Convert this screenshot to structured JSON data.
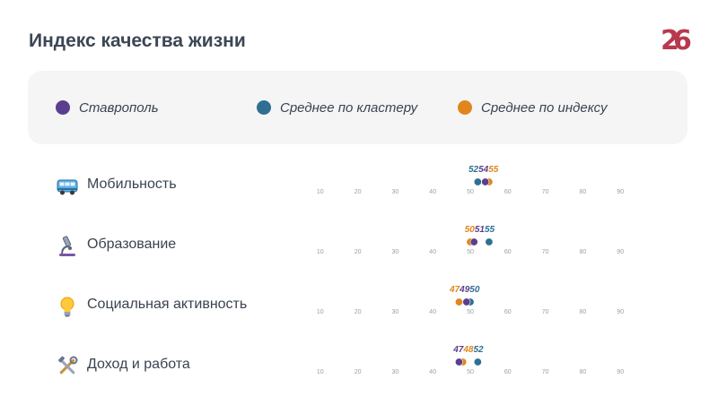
{
  "page": {
    "title": "Индекс качества жизни"
  },
  "logo": {
    "digits": [
      "2",
      "6"
    ]
  },
  "colors": {
    "city": "#5b3f8e",
    "cluster": "#2e6f92",
    "index": "#e0861c",
    "logo": "#b8394e",
    "gradient_start": "#dba1a6",
    "gradient_mid": "#c8c4c0",
    "gradient_end": "#a9dcc2"
  },
  "legend": {
    "items": [
      {
        "key": "city",
        "label": "Ставрополь"
      },
      {
        "key": "cluster",
        "label": "Среднее по кластеру"
      },
      {
        "key": "index",
        "label": "Среднее по индексу"
      }
    ]
  },
  "chart_data": {
    "type": "scatter",
    "x_range": [
      0,
      100
    ],
    "ticks": [
      10,
      20,
      30,
      40,
      50,
      60,
      70,
      80,
      90
    ],
    "series": [
      {
        "name": "Ставрополь",
        "key": "city"
      },
      {
        "name": "Среднее по кластеру",
        "key": "cluster"
      },
      {
        "name": "Среднее по индексу",
        "key": "index"
      }
    ],
    "rows": [
      {
        "label": "Мобильность",
        "icon": "bus-icon",
        "values": {
          "cluster": 52,
          "city": 54,
          "index": 55
        },
        "value_labels": [
          {
            "text": "52",
            "key": "cluster"
          },
          {
            "text": "54",
            "key": "city"
          },
          {
            "text": "55",
            "key": "index"
          }
        ]
      },
      {
        "label": "Образование",
        "icon": "microscope-icon",
        "values": {
          "index": 50,
          "city": 51,
          "cluster": 55
        },
        "value_labels": [
          {
            "text": "50",
            "key": "index"
          },
          {
            "text": "51",
            "key": "city"
          },
          {
            "text": "55",
            "key": "cluster"
          }
        ]
      },
      {
        "label": "Социальная активность",
        "icon": "lightbulb-icon",
        "values": {
          "index": 47,
          "city": 49,
          "cluster": 50
        },
        "value_labels": [
          {
            "text": "47",
            "key": "index"
          },
          {
            "text": "49",
            "key": "city"
          },
          {
            "text": "50",
            "key": "cluster"
          }
        ]
      },
      {
        "label": "Доход и работа",
        "icon": "tools-icon",
        "values": {
          "city": 47,
          "index": 48,
          "cluster": 52
        },
        "value_labels": [
          {
            "text": "47",
            "key": "city"
          },
          {
            "text": "48",
            "key": "index"
          },
          {
            "text": "52",
            "key": "cluster"
          }
        ]
      }
    ]
  }
}
